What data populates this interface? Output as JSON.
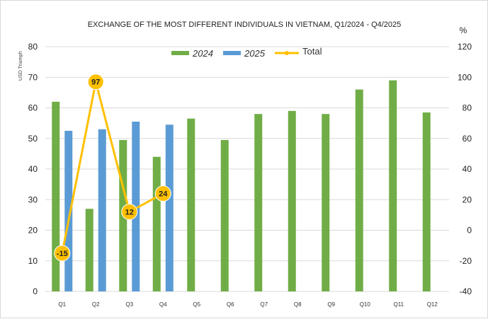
{
  "chart_data": {
    "type": "bar",
    "title": "EXCHANGE OF THE MOST DIFFERENT INDIVIDUALS IN VIETNAM, Q1/2024 - Q4/2025",
    "ylabel": "USD Triumph",
    "y2label": "%",
    "categories": [
      "Q1",
      "Q2",
      "Q3",
      "Q4",
      "Q5",
      "Q6",
      "Q7",
      "Q8",
      "Q9",
      "Q10",
      "Q11",
      "Q12"
    ],
    "ylim": [
      0,
      80
    ],
    "yticks": [
      "0",
      "10",
      "20",
      "30",
      "40",
      "50",
      "60",
      "70",
      "80"
    ],
    "y2lim": [
      -40,
      120
    ],
    "y2ticks": [
      "-40",
      "-20",
      "0",
      "20",
      "40",
      "60",
      "80",
      "100",
      "120"
    ],
    "legend_position": "top-center",
    "grid": "horizontal",
    "series": [
      {
        "name": "2024",
        "type": "bar",
        "axis": "left",
        "color": "#70ad47",
        "values": [
          62,
          27,
          49.5,
          44,
          56.5,
          49.5,
          58,
          59,
          58,
          66,
          69,
          58.5
        ]
      },
      {
        "name": "2025",
        "type": "bar",
        "axis": "left",
        "color": "#5b9bd5",
        "values": [
          52.5,
          53,
          55.5,
          54.5,
          null,
          null,
          null,
          null,
          null,
          null,
          null,
          null
        ]
      },
      {
        "name": "Total",
        "type": "line",
        "axis": "right",
        "color": "#ffc000",
        "values": [
          -15,
          97,
          12,
          24,
          null,
          null,
          null,
          null,
          null,
          null,
          null,
          null
        ],
        "labels": [
          "-15",
          "97",
          "12",
          "24"
        ]
      }
    ]
  }
}
